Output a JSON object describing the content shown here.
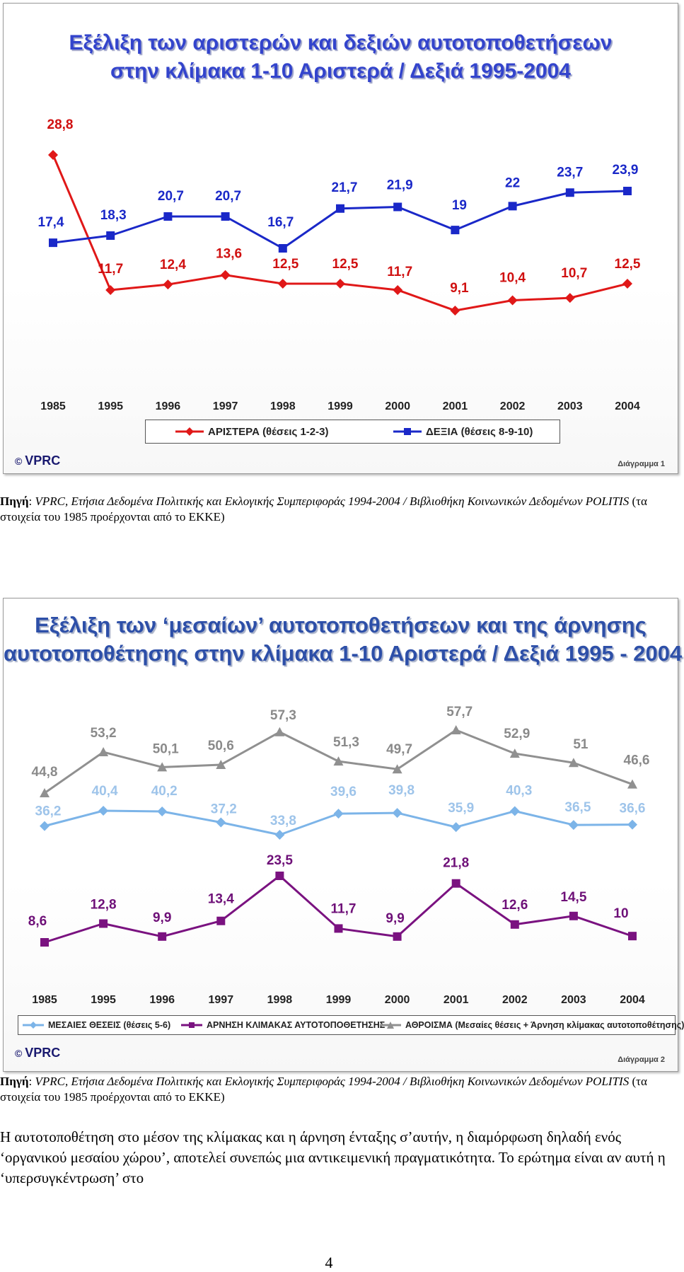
{
  "chart_data": [
    {
      "type": "line",
      "title_lines": [
        "Εξέλιξη των αριστερών και δεξιών αυτοτοποθετήσεων",
        "στην κλίμακα 1-10 Αριστερά / Δεξιά 1995-2004"
      ],
      "categories": [
        "1985",
        "1995",
        "1996",
        "1997",
        "1998",
        "1999",
        "2000",
        "2001",
        "2002",
        "2003",
        "2004"
      ],
      "series": [
        {
          "name": "ΑΡΙΣΤΕΡΑ (θέσεις 1-2-3)",
          "color": "#e01818",
          "marker": "diamond",
          "values": [
            28.8,
            11.7,
            12.4,
            13.6,
            12.5,
            12.5,
            11.7,
            9.1,
            10.4,
            10.7,
            12.5
          ],
          "labels": [
            "28,8",
            "11,7",
            "12,4",
            "13,6",
            "12,5",
            "12,5",
            "11,7",
            "9,1",
            "10,4",
            "10,7",
            "12,5"
          ]
        },
        {
          "name": "ΔΕΞΙΑ (θέσεις 8-9-10)",
          "color": "#1a28c8",
          "marker": "square",
          "values": [
            17.4,
            18.3,
            20.7,
            20.7,
            16.7,
            21.7,
            21.9,
            19,
            22,
            23.7,
            23.9
          ],
          "labels": [
            "17,4",
            "18,3",
            "20,7",
            "20,7",
            "16,7",
            "21,7",
            "21,9",
            "19",
            "22",
            "23,7",
            "23,9"
          ]
        }
      ],
      "legend": "bottom",
      "grid": false,
      "copyright": "©",
      "brand": "VPRC",
      "caption": "Διάγραμμα 1"
    },
    {
      "type": "line",
      "title_lines": [
        "Εξέλιξη των ‘μεσαίων’ αυτοτοποθετήσεων και της άρνησης",
        "αυτοτοποθέτησης στην κλίμακα 1-10 Αριστερά / Δεξιά 1995 - 2004"
      ],
      "categories": [
        "1985",
        "1995",
        "1996",
        "1997",
        "1998",
        "1999",
        "2000",
        "2001",
        "2002",
        "2003",
        "2004"
      ],
      "series": [
        {
          "name": "ΜΕΣΑΙΕΣ ΘΕΣΕΙΣ (θέσεις 5-6)",
          "color": "#7cb4e8",
          "marker": "diamond",
          "values": [
            36.2,
            40.4,
            40.2,
            37.2,
            33.8,
            39.6,
            39.8,
            35.9,
            40.3,
            36.5,
            36.6
          ],
          "labels": [
            "36,2",
            "40,4",
            "40,2",
            "37,2",
            "33,8",
            "39,6",
            "39,8",
            "35,9",
            "40,3",
            "36,5",
            "36,6"
          ]
        },
        {
          "name": "ΑΡΝΗΣΗ ΚΛΙΜΑΚΑΣ ΑΥΤΟΤΟΠΟΘΕΤΗΣΗΣ",
          "color": "#7a1280",
          "marker": "square",
          "values": [
            8.6,
            12.8,
            9.9,
            13.4,
            23.5,
            11.7,
            9.9,
            21.8,
            12.6,
            14.5,
            10
          ],
          "labels": [
            "8,6",
            "12,8",
            "9,9",
            "13,4",
            "23,5",
            "11,7",
            "9,9",
            "21,8",
            "12,6",
            "14,5",
            "10"
          ]
        },
        {
          "name": "ΑΘΡΟΙΣΜΑ (Μεσαίες θέσεις + Άρνηση κλίμακας αυτοτοποθέτησης)",
          "color": "#909090",
          "marker": "triangle",
          "values": [
            44.8,
            53.2,
            50.1,
            50.6,
            57.3,
            51.3,
            49.7,
            57.7,
            52.9,
            51,
            46.6
          ],
          "labels": [
            "44,8",
            "53,2",
            "50,1",
            "50,6",
            "57,3",
            "51,3",
            "49,7",
            "57,7",
            "52,9",
            "51",
            "46,6"
          ]
        }
      ],
      "legend": "bottom",
      "grid": false,
      "copyright": "©",
      "brand": "VPRC",
      "caption": "Διάγραμμα 2"
    }
  ],
  "source": {
    "label": "Πηγή",
    "colon": ":",
    "italic": "VPRC, Ετήσια Δεδομένα Πολιτικής και Εκλογικής Συμπεριφοράς 1994-2004 / Βιβλιοθήκη Κοινωνικών Δεδομένων POLITIS",
    "note": "(τα στοιχεία του 1985 προέρχονται από το ΕΚΚΕ)"
  },
  "body_text": "Η αυτοτοποθέτηση στο μέσον της κλίμακας και η άρνηση ένταξης σ’αυτήν, η διαμόρφωση δηλαδή ενός ‘οργανικού μεσαίου χώρου’, αποτελεί συνεπώς μια αντικειμενική πραγματικότητα. Το ερώτημα είναι αν αυτή η ‘υπερσυγκέντρωση’ στο",
  "page_number": "4"
}
